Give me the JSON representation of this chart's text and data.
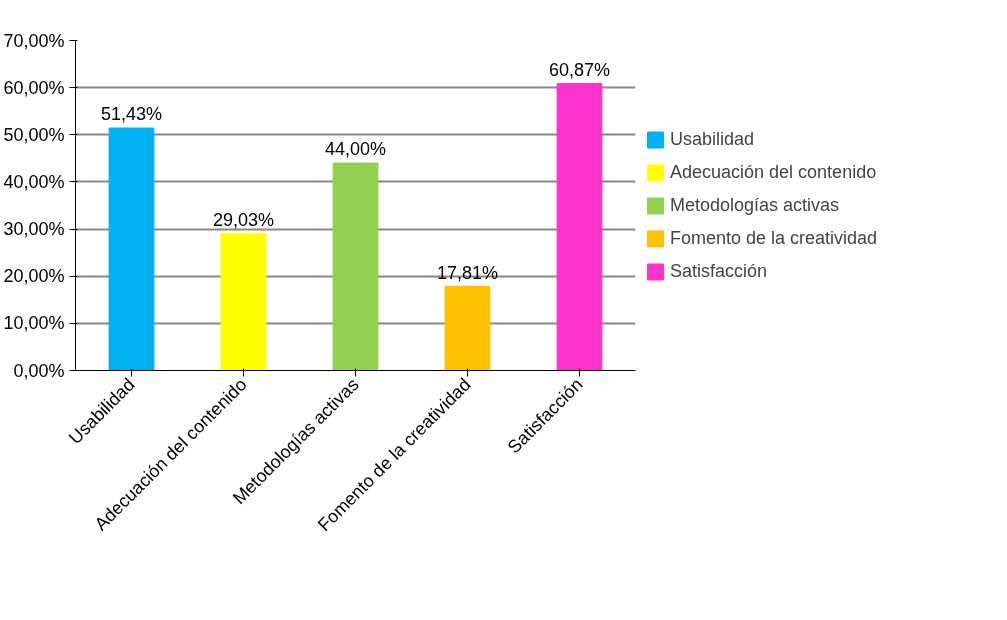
{
  "chart_data": {
    "type": "bar",
    "categories": [
      "Usabilidad",
      "Adecuación del contenido",
      "Metodologías activas",
      "Fomento de la creatividad",
      "Satisfacción"
    ],
    "series": [
      {
        "name": "Usabilidad",
        "color": "#00b0f0",
        "values": [
          51.43,
          null,
          null,
          null,
          null
        ]
      },
      {
        "name": "Adecuación del contenido",
        "color": "#ffff00",
        "values": [
          null,
          29.03,
          null,
          null,
          null
        ]
      },
      {
        "name": "Metodologías activas",
        "color": "#92d050",
        "values": [
          null,
          null,
          44.0,
          null,
          null
        ]
      },
      {
        "name": "Fomento de la creatividad",
        "color": "#ffc000",
        "values": [
          null,
          null,
          null,
          17.81,
          null
        ]
      },
      {
        "name": "Satisfacción",
        "color": "#ff33cc",
        "values": [
          null,
          null,
          null,
          null,
          60.87
        ]
      }
    ],
    "value_labels": [
      "51,43%",
      "29,03%",
      "44,00%",
      "17,81%",
      "60,87%"
    ],
    "ylim": [
      0,
      70
    ],
    "yticks": [
      {
        "value": 0,
        "label": "0,00%"
      },
      {
        "value": 10,
        "label": "10,00%"
      },
      {
        "value": 20,
        "label": "20,00%"
      },
      {
        "value": 30,
        "label": "30,00%"
      },
      {
        "value": 40,
        "label": "40,00%"
      },
      {
        "value": 50,
        "label": "50,00%"
      },
      {
        "value": 60,
        "label": "60,00%"
      },
      {
        "value": 70,
        "label": "70,00%"
      }
    ],
    "grid": "y",
    "legend": "right"
  }
}
